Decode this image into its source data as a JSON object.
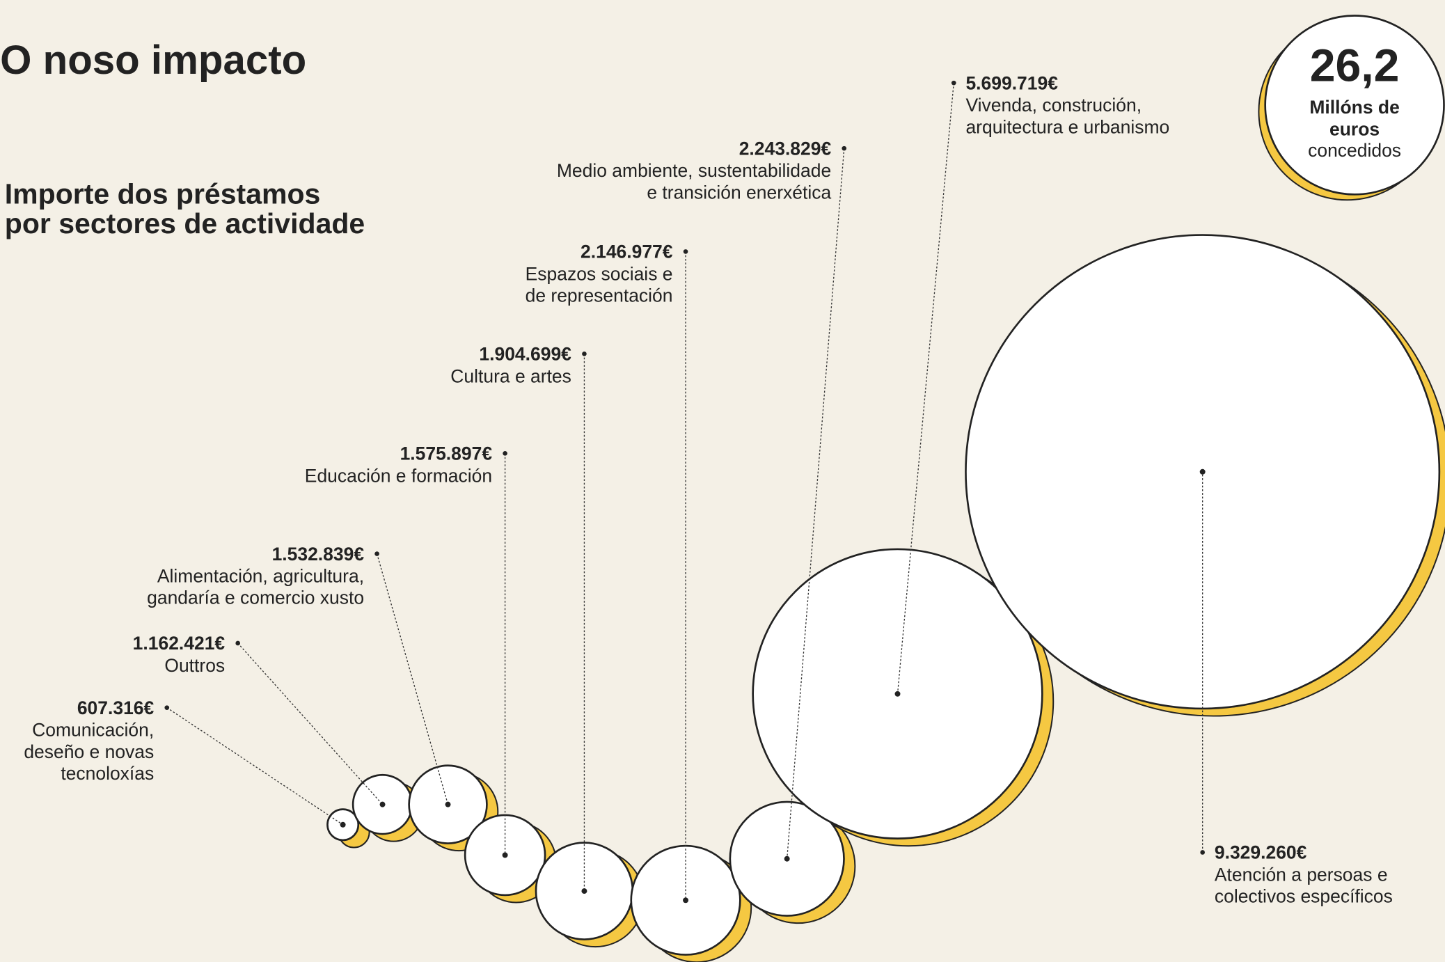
{
  "chart_data": {
    "type": "bubble",
    "title": "O noso impacto",
    "subtitle": [
      "Importe dos préstamos",
      "por sectores de actividade"
    ],
    "badge": {
      "value": "26,2",
      "lines": [
        "Millóns de",
        "euros",
        "concedidos"
      ]
    },
    "categories": [
      [
        "Comunicación,",
        "deseño e novas",
        "tecnoloxías"
      ],
      [
        "Outtros"
      ],
      [
        "Alimentación, agricultura,",
        "gandaría e comercio xusto"
      ],
      [
        "Educación e formación"
      ],
      [
        "Cultura e artes"
      ],
      [
        "Espazos sociais e",
        "de representación"
      ],
      [
        "Medio ambiente, sustentabilidade",
        "e transición enerxética"
      ],
      [
        "Vivenda, construción,",
        "arquitectura e urbanismo"
      ],
      [
        "Atención a persoas e",
        "colectivos específicos"
      ]
    ],
    "values": [
      607316,
      1162421,
      1532839,
      1575897,
      1904699,
      2146977,
      2243829,
      5699719,
      9329260
    ],
    "value_labels": [
      "607.316€",
      "1.162.421€",
      "1.532.839€",
      "1.575.897€",
      "1.904.699€",
      "2.146.977€",
      "2.243.829€",
      "5.699.719€",
      "9.329.260€"
    ],
    "color": "#ffffff",
    "shadow_color": "#f5c842"
  }
}
